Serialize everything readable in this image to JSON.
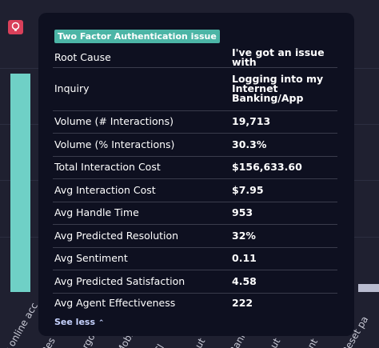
{
  "background_chart": {
    "labels": [
      "k online acc",
      "Res",
      "orgo",
      "Mobi",
      "Cl",
      "Aut",
      "Bank",
      "Aut",
      "unt",
      "Reset pa"
    ]
  },
  "tooltip": {
    "tag": "Two Factor Authentication issue",
    "rows": [
      [
        "Root Cause",
        "I've got an issue with"
      ],
      [
        "Inquiry",
        "Logging into my Internet Banking/App"
      ],
      [
        "Volume (# Interactions)",
        "19,713"
      ],
      [
        "Volume (% Interactions)",
        "30.3%"
      ],
      [
        "Total Interaction Cost",
        "$156,633.60"
      ],
      [
        "Avg Interaction Cost",
        "$7.95"
      ],
      [
        "Avg Handle Time",
        "953"
      ],
      [
        "Avg Predicted Resolution",
        "32%"
      ],
      [
        "Avg Sentiment",
        "0.11"
      ],
      [
        "Avg Predicted Satisfaction",
        "4.58"
      ],
      [
        "Avg Agent Effectiveness",
        "222"
      ]
    ],
    "toggle": "See less"
  }
}
